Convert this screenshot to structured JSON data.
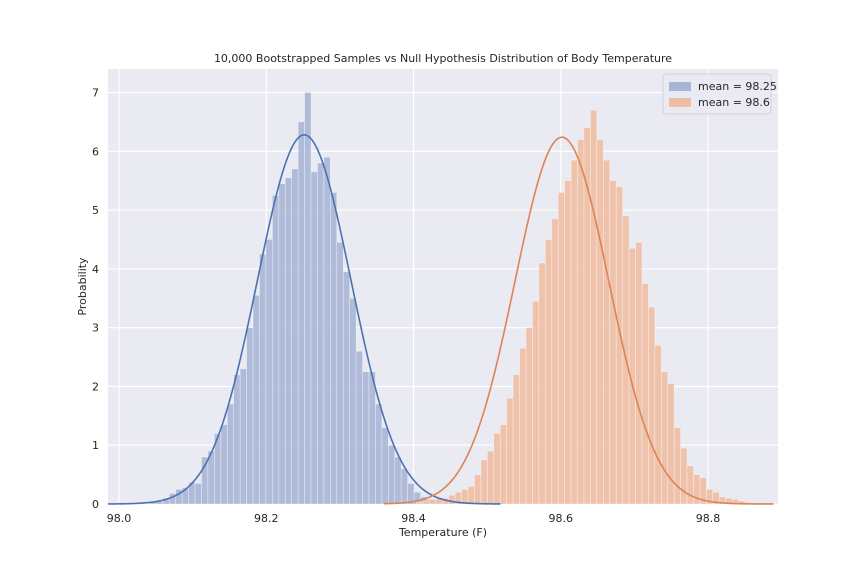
{
  "chart_data": {
    "type": "bar",
    "title": "10,000 Bootstrapped Samples vs Null Hypothesis Distribution of Body Temperature",
    "xlabel": "Temperature (F)",
    "ylabel": "Probability",
    "xlim": [
      97.985,
      98.895
    ],
    "ylim": [
      0,
      7.4
    ],
    "xticks": [
      98.0,
      98.2,
      98.4,
      98.6,
      98.8
    ],
    "xtick_labels": [
      "98.0",
      "98.2",
      "98.4",
      "98.6",
      "98.8"
    ],
    "yticks": [
      0,
      1,
      2,
      3,
      4,
      5,
      6,
      7
    ],
    "ytick_labels": [
      "0",
      "1",
      "2",
      "3",
      "4",
      "5",
      "6",
      "7"
    ],
    "grid": true,
    "legend_position": "top-right",
    "background_color": "#eaeaf2",
    "bin_width": 0.00875,
    "series": [
      {
        "name": "mean = 98.25",
        "color": "#4c72b0",
        "bar_color": "#a8b6d6",
        "bin_start": 98.042,
        "values": [
          0.03,
          0.05,
          0.1,
          0.18,
          0.25,
          0.28,
          0.37,
          0.35,
          0.8,
          0.9,
          1.2,
          1.35,
          1.7,
          2.2,
          2.3,
          3.0,
          3.55,
          4.25,
          4.5,
          5.25,
          5.45,
          5.55,
          5.7,
          6.5,
          7.0,
          5.65,
          5.8,
          5.9,
          5.3,
          4.45,
          3.95,
          3.5,
          2.6,
          2.25,
          2.25,
          1.7,
          1.3,
          1.0,
          0.8,
          0.6,
          0.35,
          0.2,
          0.12,
          0.08,
          0.05,
          0.03,
          0.02
        ],
        "curve": {
          "mean": 98.2515,
          "sd": 0.0635,
          "peak": 6.28,
          "range": [
            97.985,
            98.518
          ]
        }
      },
      {
        "name": "mean = 98.6",
        "color": "#dd8452",
        "bar_color": "#eebea3",
        "bin_start": 98.404,
        "values": [
          0.03,
          0.05,
          0.08,
          0.1,
          0.1,
          0.15,
          0.2,
          0.25,
          0.3,
          0.5,
          0.75,
          0.9,
          1.2,
          1.35,
          1.8,
          2.2,
          2.65,
          3.0,
          3.45,
          4.1,
          4.5,
          4.85,
          5.3,
          5.5,
          5.85,
          6.2,
          6.4,
          6.7,
          6.2,
          5.85,
          5.5,
          5.4,
          4.9,
          4.35,
          4.45,
          3.75,
          3.35,
          2.7,
          2.25,
          2.05,
          1.3,
          0.95,
          0.65,
          0.5,
          0.45,
          0.25,
          0.2,
          0.12,
          0.1,
          0.08,
          0.05,
          0.03
        ],
        "curve": {
          "mean": 98.6015,
          "sd": 0.0638,
          "peak": 6.24,
          "range": [
            98.36,
            98.889
          ]
        }
      }
    ]
  }
}
